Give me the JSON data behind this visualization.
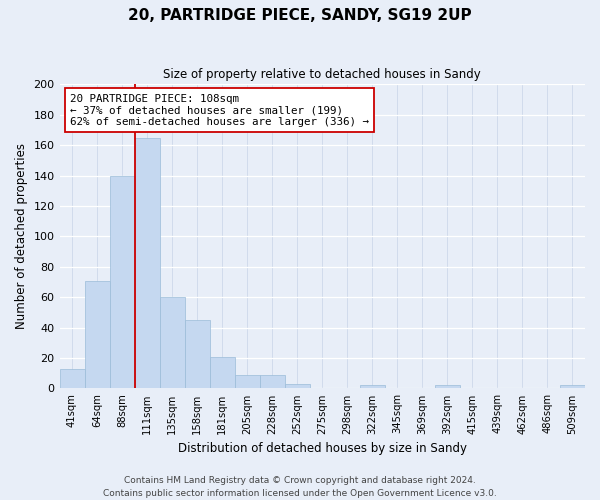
{
  "title": "20, PARTRIDGE PIECE, SANDY, SG19 2UP",
  "subtitle": "Size of property relative to detached houses in Sandy",
  "xlabel": "Distribution of detached houses by size in Sandy",
  "ylabel": "Number of detached properties",
  "bar_color": "#c5d8f0",
  "bar_edge_color": "#9bbcd8",
  "bins": [
    "41sqm",
    "64sqm",
    "88sqm",
    "111sqm",
    "135sqm",
    "158sqm",
    "181sqm",
    "205sqm",
    "228sqm",
    "252sqm",
    "275sqm",
    "298sqm",
    "322sqm",
    "345sqm",
    "369sqm",
    "392sqm",
    "415sqm",
    "439sqm",
    "462sqm",
    "486sqm",
    "509sqm"
  ],
  "values": [
    13,
    71,
    140,
    165,
    60,
    45,
    21,
    9,
    9,
    3,
    0,
    0,
    2,
    0,
    0,
    2,
    0,
    0,
    0,
    0,
    2
  ],
  "ylim": [
    0,
    200
  ],
  "yticks": [
    0,
    20,
    40,
    60,
    80,
    100,
    120,
    140,
    160,
    180,
    200
  ],
  "vline_index": 3,
  "annotation_title": "20 PARTRIDGE PIECE: 108sqm",
  "annotation_line1": "← 37% of detached houses are smaller (199)",
  "annotation_line2": "62% of semi-detached houses are larger (336) →",
  "vline_color": "#cc0000",
  "annotation_box_color": "#ffffff",
  "annotation_box_edge": "#cc0000",
  "footer1": "Contains HM Land Registry data © Crown copyright and database right 2024.",
  "footer2": "Contains public sector information licensed under the Open Government Licence v3.0.",
  "background_color": "#e8eef8",
  "grid_color": "#c8d4e8"
}
